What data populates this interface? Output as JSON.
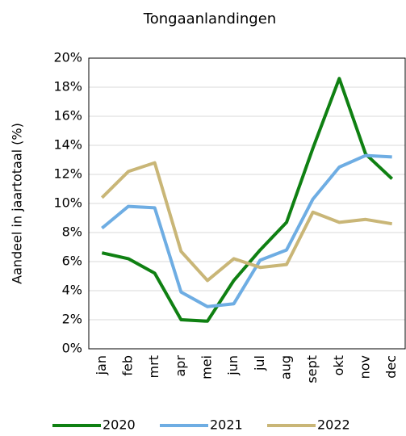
{
  "chart_data": {
    "type": "line",
    "title": "Tongaanlandingen",
    "y_label": "Aandeel in jaartotaal (%)",
    "categories": [
      "jan",
      "feb",
      "mrt",
      "apr",
      "mei",
      "jun",
      "jul",
      "aug",
      "sept",
      "okt",
      "nov",
      "dec"
    ],
    "series": [
      {
        "name": "2020",
        "color": "#0f8012",
        "values": [
          6.6,
          6.2,
          5.2,
          2.0,
          1.9,
          4.7,
          6.8,
          8.7,
          13.8,
          18.6,
          13.4,
          11.7
        ]
      },
      {
        "name": "2021",
        "color": "#6eade3",
        "values": [
          8.3,
          9.8,
          9.7,
          3.9,
          2.9,
          3.1,
          6.1,
          6.8,
          10.3,
          12.5,
          13.3,
          13.2
        ]
      },
      {
        "name": "2022",
        "color": "#c9b677",
        "values": [
          10.4,
          12.2,
          12.8,
          6.7,
          4.7,
          6.2,
          5.6,
          5.8,
          9.4,
          8.7,
          8.9,
          8.6
        ]
      }
    ],
    "ylim": [
      0,
      20
    ],
    "yticks": [
      {
        "value": 0,
        "label": "0%"
      },
      {
        "value": 2,
        "label": "2%"
      },
      {
        "value": 4,
        "label": "4%"
      },
      {
        "value": 6,
        "label": "6%"
      },
      {
        "value": 8,
        "label": "8%"
      },
      {
        "value": 10,
        "label": "10%"
      },
      {
        "value": 12,
        "label": "12%"
      },
      {
        "value": 14,
        "label": "14%"
      },
      {
        "value": 16,
        "label": "16%"
      },
      {
        "value": 18,
        "label": "18%"
      },
      {
        "value": 20,
        "label": "20%"
      }
    ],
    "grid": true,
    "legend": "bottom"
  }
}
